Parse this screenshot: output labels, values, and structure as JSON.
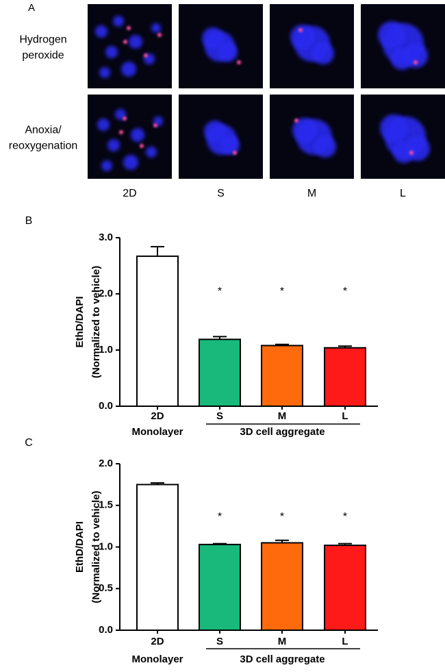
{
  "panel_a": {
    "label": "A",
    "row_labels": [
      [
        "Hydrogen",
        "peroxide"
      ],
      [
        "Anoxia/",
        "reoxygenation"
      ]
    ],
    "column_labels": [
      "2D",
      "S",
      "M",
      "L"
    ]
  },
  "chart_data": [
    {
      "type": "bar",
      "panel_label": "B",
      "y_label": [
        "EthD/DAPI",
        "(Normalized to vehicle)"
      ],
      "categories": [
        "2D",
        "S",
        "M",
        "L"
      ],
      "groups": [
        {
          "label": "Monolayer",
          "categories": [
            0
          ]
        },
        {
          "label": "3D cell aggregate",
          "categories": [
            1,
            2,
            3
          ]
        }
      ],
      "values": [
        2.67,
        1.19,
        1.08,
        1.04
      ],
      "errors": [
        0.17,
        0.05,
        0.02,
        0.03
      ],
      "colors": [
        "#ffffff",
        "#19b97c",
        "#ff6a0d",
        "#ff1a1a"
      ],
      "significance": [
        null,
        "*",
        "*",
        "*"
      ],
      "ylim": [
        0,
        3
      ],
      "yticks": [
        {
          "value": 0,
          "label": "0.0"
        },
        {
          "value": 1,
          "label": "1.0"
        },
        {
          "value": 2,
          "label": "2.0"
        },
        {
          "value": 3,
          "label": "3.0"
        }
      ]
    },
    {
      "type": "bar",
      "panel_label": "C",
      "y_label": [
        "EthD/DAPI",
        "(Normalized to vehicle)"
      ],
      "categories": [
        "2D",
        "S",
        "M",
        "L"
      ],
      "groups": [
        {
          "label": "Monolayer",
          "categories": [
            0
          ]
        },
        {
          "label": "3D cell aggregate",
          "categories": [
            1,
            2,
            3
          ]
        }
      ],
      "values": [
        1.75,
        1.03,
        1.05,
        1.02
      ],
      "errors": [
        0.02,
        0.01,
        0.03,
        0.02
      ],
      "colors": [
        "#ffffff",
        "#19b97c",
        "#ff6a0d",
        "#ff1a1a"
      ],
      "significance": [
        null,
        "*",
        "*",
        "*"
      ],
      "ylim": [
        0,
        2
      ],
      "yticks": [
        {
          "value": 0,
          "label": "0.0"
        },
        {
          "value": 0.5,
          "label": "0.5"
        },
        {
          "value": 1,
          "label": "1.0"
        },
        {
          "value": 1.5,
          "label": "1.5"
        },
        {
          "value": 2,
          "label": "2.0"
        }
      ]
    }
  ]
}
